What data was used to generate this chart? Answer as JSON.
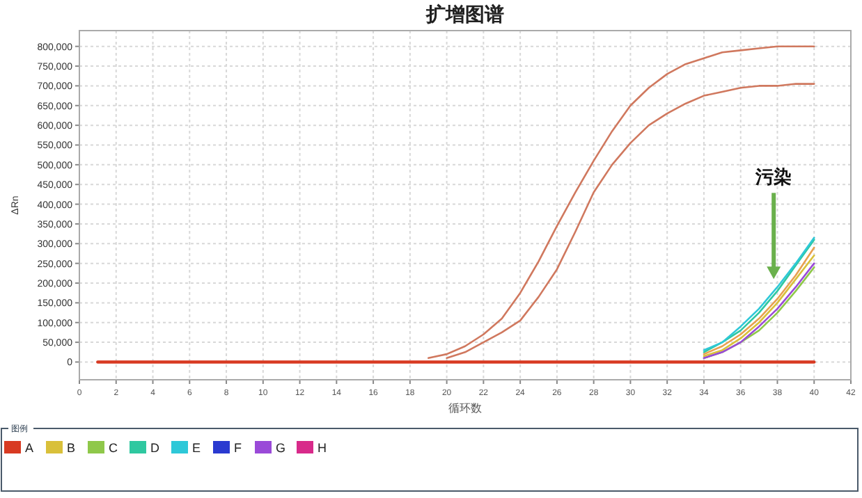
{
  "chart_data": {
    "type": "line",
    "title": "扩增图谱",
    "xlabel": "循环数",
    "ylabel": "ΔRn",
    "legend_title": "图例",
    "legend": "bottom",
    "grid": true,
    "marker": "none",
    "line_style": "solid",
    "x": [
      1,
      2,
      3,
      4,
      5,
      6,
      7,
      8,
      9,
      10,
      11,
      12,
      13,
      14,
      15,
      16,
      17,
      18,
      19,
      20,
      21,
      22,
      23,
      24,
      25,
      26,
      27,
      28,
      29,
      30,
      31,
      32,
      33,
      34,
      35,
      36,
      37,
      38,
      39,
      40
    ],
    "xlim": [
      0,
      42
    ],
    "xticks": [
      0,
      2,
      4,
      6,
      8,
      10,
      12,
      14,
      16,
      18,
      20,
      22,
      24,
      26,
      28,
      30,
      32,
      34,
      36,
      38,
      40,
      42
    ],
    "ylim": [
      -45000,
      840000
    ],
    "yticks": [
      {
        "value": 0,
        "label": "0"
      },
      {
        "value": 50000,
        "label": "50,000"
      },
      {
        "value": 100000,
        "label": "100,000"
      },
      {
        "value": 150000,
        "label": "150,000"
      },
      {
        "value": 200000,
        "label": "200,000"
      },
      {
        "value": 250000,
        "label": "250,000"
      },
      {
        "value": 300000,
        "label": "300,000"
      },
      {
        "value": 350000,
        "label": "350,000"
      },
      {
        "value": 400000,
        "label": "400,000"
      },
      {
        "value": 450000,
        "label": "450,000"
      },
      {
        "value": 500000,
        "label": "500,000"
      },
      {
        "value": 550000,
        "label": "550,000"
      },
      {
        "value": 600000,
        "label": "600,000"
      },
      {
        "value": 650000,
        "label": "650,000"
      },
      {
        "value": 700000,
        "label": "700,000"
      },
      {
        "value": 750000,
        "label": "750,000"
      },
      {
        "value": 800000,
        "label": "800,000"
      }
    ],
    "annotations": [
      {
        "text": "污染",
        "x": 37.8,
        "y": 210000
      }
    ],
    "series": [
      {
        "name": "A",
        "color": "#d83a22",
        "values": [
          0,
          0,
          0,
          0,
          0,
          0,
          0,
          0,
          0,
          0,
          0,
          0,
          0,
          0,
          0,
          0,
          0,
          0,
          0,
          0,
          0,
          0,
          0,
          0,
          0,
          0,
          0,
          0,
          0,
          0,
          0,
          0,
          0,
          0,
          0,
          0,
          0,
          0,
          0,
          0
        ]
      },
      {
        "color": "#d0785e",
        "values": [
          null,
          null,
          null,
          null,
          null,
          null,
          null,
          null,
          null,
          null,
          null,
          null,
          null,
          null,
          null,
          null,
          null,
          null,
          10000,
          20000,
          40000,
          70000,
          110000,
          175000,
          255000,
          345000,
          430000,
          510000,
          585000,
          650000,
          695000,
          730000,
          755000,
          770000,
          785000,
          790000,
          795000,
          800000,
          800000,
          800000
        ]
      },
      {
        "color": "#d0785e",
        "values": [
          null,
          null,
          null,
          null,
          null,
          null,
          null,
          null,
          null,
          null,
          null,
          null,
          null,
          null,
          null,
          null,
          null,
          null,
          null,
          10000,
          25000,
          50000,
          75000,
          105000,
          165000,
          235000,
          330000,
          430000,
          500000,
          555000,
          600000,
          630000,
          655000,
          675000,
          685000,
          695000,
          700000,
          700000,
          705000,
          705000
        ]
      },
      {
        "color": "#e8a050",
        "values": [
          null,
          null,
          null,
          null,
          null,
          null,
          null,
          null,
          null,
          null,
          null,
          null,
          null,
          null,
          null,
          null,
          null,
          null,
          null,
          null,
          null,
          null,
          null,
          null,
          null,
          null,
          null,
          null,
          null,
          null,
          null,
          null,
          null,
          20000,
          40000,
          70000,
          110000,
          160000,
          220000,
          290000
        ]
      },
      {
        "name": "B",
        "color": "#d9c03a",
        "values": [
          null,
          null,
          null,
          null,
          null,
          null,
          null,
          null,
          null,
          null,
          null,
          null,
          null,
          null,
          null,
          null,
          null,
          null,
          null,
          null,
          null,
          null,
          null,
          null,
          null,
          null,
          null,
          null,
          null,
          null,
          null,
          null,
          null,
          15000,
          30000,
          60000,
          100000,
          150000,
          210000,
          270000
        ]
      },
      {
        "name": "C",
        "color": "#8fc84a",
        "values": [
          null,
          null,
          null,
          null,
          null,
          null,
          null,
          null,
          null,
          null,
          null,
          null,
          null,
          null,
          null,
          null,
          null,
          null,
          null,
          null,
          null,
          null,
          null,
          null,
          null,
          null,
          null,
          null,
          null,
          null,
          null,
          null,
          null,
          10000,
          25000,
          50000,
          80000,
          125000,
          180000,
          240000
        ]
      },
      {
        "name": "D",
        "color": "#2fc8a0",
        "values": [
          null,
          null,
          null,
          null,
          null,
          null,
          null,
          null,
          null,
          null,
          null,
          null,
          null,
          null,
          null,
          null,
          null,
          null,
          null,
          null,
          null,
          null,
          null,
          null,
          null,
          null,
          null,
          null,
          null,
          null,
          null,
          null,
          null,
          25000,
          50000,
          80000,
          125000,
          180000,
          245000,
          310000
        ]
      },
      {
        "name": "E",
        "color": "#2ec8d8",
        "values": [
          null,
          null,
          null,
          null,
          null,
          null,
          null,
          null,
          null,
          null,
          null,
          null,
          null,
          null,
          null,
          null,
          null,
          null,
          null,
          null,
          null,
          null,
          null,
          null,
          null,
          null,
          null,
          null,
          null,
          null,
          null,
          null,
          null,
          30000,
          50000,
          90000,
          135000,
          190000,
          250000,
          315000
        ]
      },
      {
        "name": "F",
        "color": "#2a3ad0",
        "values": [
          null,
          null,
          null,
          null,
          null,
          null,
          null,
          null,
          null,
          null,
          null,
          null,
          null,
          null,
          null,
          null,
          null,
          null,
          null,
          null,
          null,
          null,
          null,
          null,
          null,
          null,
          null,
          null,
          null,
          null,
          null,
          null,
          null,
          null,
          null,
          null,
          null,
          null,
          null,
          null
        ]
      },
      {
        "name": "G",
        "color": "#9a4ad8",
        "values": [
          null,
          null,
          null,
          null,
          null,
          null,
          null,
          null,
          null,
          null,
          null,
          null,
          null,
          null,
          null,
          null,
          null,
          null,
          null,
          null,
          null,
          null,
          null,
          null,
          null,
          null,
          null,
          null,
          null,
          null,
          null,
          null,
          null,
          10000,
          25000,
          50000,
          90000,
          135000,
          190000,
          250000
        ]
      },
      {
        "name": "H",
        "color": "#d82a8a",
        "values": [
          null,
          null,
          null,
          null,
          null,
          null,
          null,
          null,
          null,
          null,
          null,
          null,
          null,
          null,
          null,
          null,
          null,
          null,
          null,
          null,
          null,
          null,
          null,
          null,
          null,
          null,
          null,
          null,
          null,
          null,
          null,
          null,
          null,
          null,
          null,
          null,
          null,
          null,
          null,
          null
        ]
      }
    ]
  }
}
